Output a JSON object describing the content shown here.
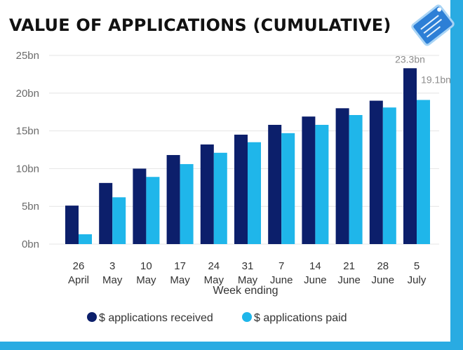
{
  "chart_data": {
    "type": "bar",
    "title": "VALUE OF APPLICATIONS (CUMULATIVE)",
    "categories": [
      [
        "26",
        "April"
      ],
      [
        "3",
        "May"
      ],
      [
        "10",
        "May"
      ],
      [
        "17",
        "May"
      ],
      [
        "24",
        "May"
      ],
      [
        "31",
        "May"
      ],
      [
        "7",
        "June"
      ],
      [
        "14",
        "June"
      ],
      [
        "21",
        "June"
      ],
      [
        "28",
        "June"
      ],
      [
        "5",
        "July"
      ]
    ],
    "series": [
      {
        "name": "$ applications received",
        "color": "#0c1f6b",
        "values": [
          5.1,
          8.1,
          10.0,
          11.8,
          13.2,
          14.5,
          15.8,
          16.9,
          18.0,
          19.0,
          23.3
        ]
      },
      {
        "name": "$ applications paid",
        "color": "#1fb6ea",
        "values": [
          1.3,
          6.2,
          8.9,
          10.6,
          12.1,
          13.5,
          14.7,
          15.8,
          17.1,
          18.1,
          19.1
        ]
      }
    ],
    "data_labels": [
      {
        "series": 0,
        "index": 10,
        "text": "23.3bn"
      },
      {
        "series": 1,
        "index": 10,
        "text": "19.1bn"
      }
    ],
    "xlabel": "Week ending",
    "ylabel": "",
    "ylim": [
      0,
      25
    ],
    "yticks": [
      0,
      5,
      10,
      15,
      20,
      25
    ],
    "ytick_labels": [
      "0bn",
      "5bn",
      "10bn",
      "15bn",
      "20bn",
      "25bn"
    ],
    "grid": true,
    "legend_position": "bottom"
  },
  "badge_icon": "document-tag-icon"
}
